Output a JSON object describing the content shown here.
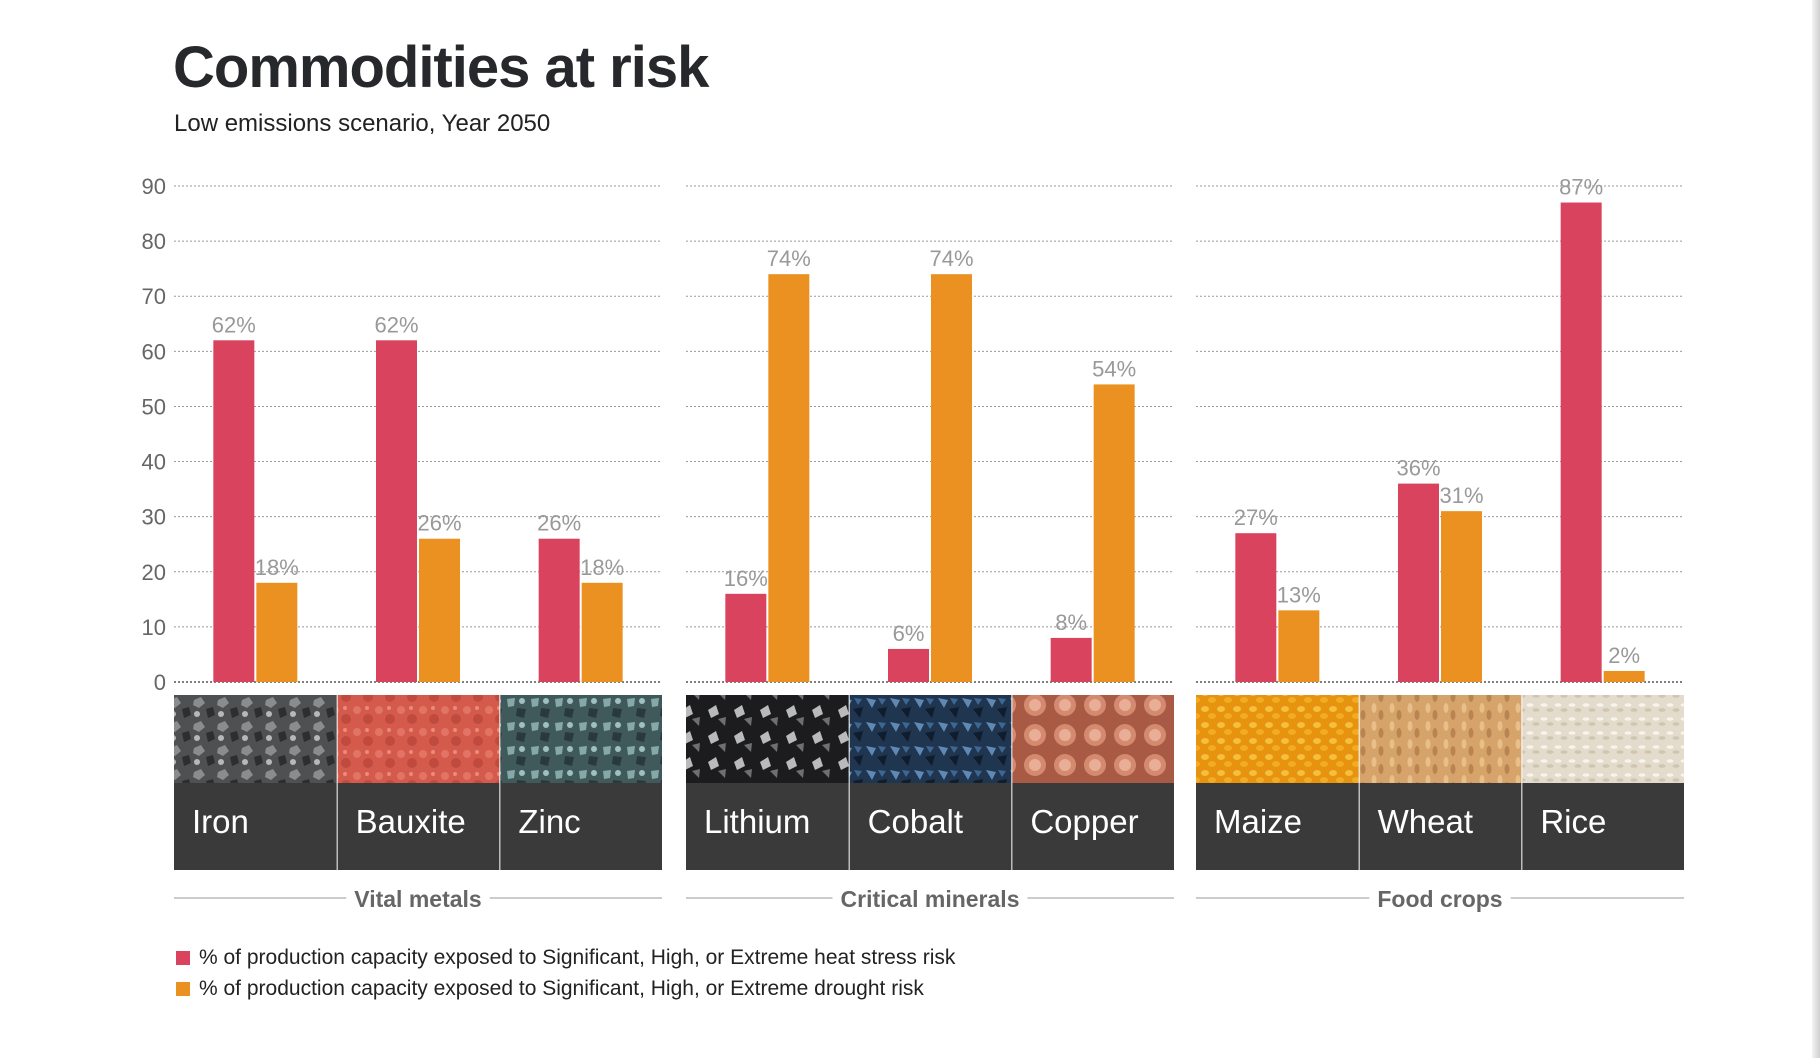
{
  "title": "Commodities at risk",
  "subtitle": "Low emissions scenario, Year 2050",
  "colors": {
    "heat": "#d9435e",
    "drought": "#eb9122",
    "label": "#999999",
    "tile": "#3a3a3a",
    "axis": "#666666"
  },
  "legend": [
    {
      "key": "heat",
      "text": "% of production capacity exposed to Significant, High, or Extreme heat stress risk"
    },
    {
      "key": "drought",
      "text": "% of production capacity exposed to Significant, High, or Extreme drought risk"
    }
  ],
  "chart_data": {
    "type": "bar",
    "ylim": [
      0,
      90
    ],
    "yticks": [
      0,
      10,
      20,
      30,
      40,
      50,
      60,
      70,
      80,
      90
    ],
    "grid": true,
    "series": [
      {
        "key": "heat",
        "values": [
          62,
          62,
          26,
          16,
          6,
          8,
          27,
          36,
          87
        ]
      },
      {
        "key": "drought",
        "values": [
          18,
          26,
          18,
          74,
          74,
          54,
          13,
          31,
          2
        ]
      }
    ],
    "categories": [
      "Iron",
      "Bauxite",
      "Zinc",
      "Lithium",
      "Cobalt",
      "Copper",
      "Maize",
      "Wheat",
      "Rice"
    ],
    "groups": [
      {
        "name": "Vital metals",
        "items": [
          "Iron",
          "Bauxite",
          "Zinc"
        ],
        "textures": [
          "ore-dark",
          "ore-red",
          "ore-teal"
        ]
      },
      {
        "name": "Critical minerals",
        "items": [
          "Lithium",
          "Cobalt",
          "Copper"
        ],
        "textures": [
          "ore-silver",
          "ore-blue",
          "copper-rods"
        ]
      },
      {
        "name": "Food crops",
        "items": [
          "Maize",
          "Wheat",
          "Rice"
        ],
        "textures": [
          "grain-yellow",
          "grain-wheat",
          "grain-rice"
        ]
      }
    ]
  }
}
